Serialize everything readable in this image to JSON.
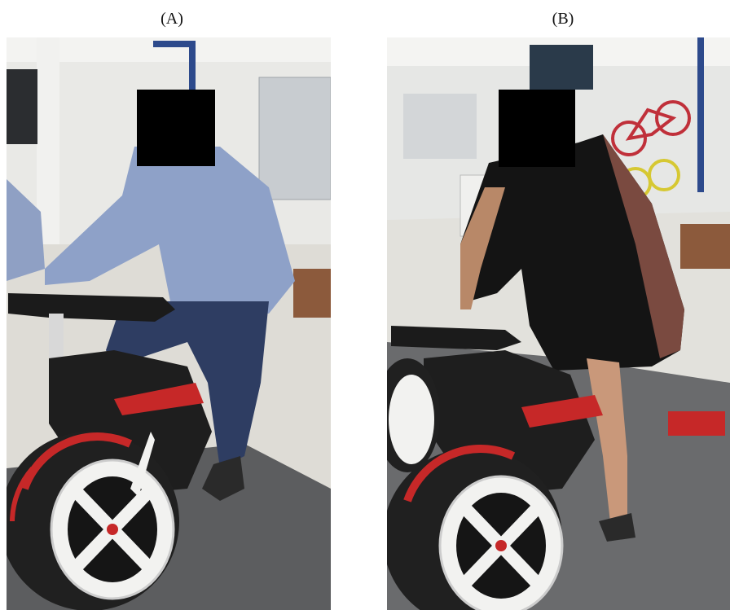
{
  "panels": [
    {
      "label": "(A)"
    },
    {
      "label": "(B)"
    }
  ]
}
